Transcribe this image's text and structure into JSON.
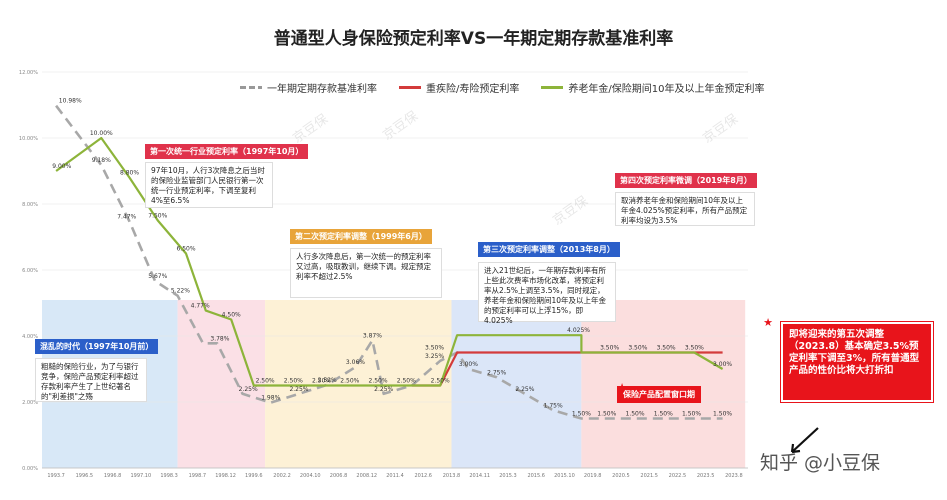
{
  "chart_data": {
    "type": "line",
    "title": "普通型人身保险预定利率VS一年期定期存款基准利率",
    "x": [
      "1993.7",
      "1996.5",
      "1996.8",
      "1997.10",
      "1998.3",
      "1998.7",
      "1998.12",
      "1999.6",
      "2002.2",
      "2004.10",
      "2006.8",
      "2008.12",
      "2011.4",
      "2012.6",
      "2013.8",
      "2014.11",
      "2015.3",
      "2015.6",
      "2015.10",
      "2019.8",
      "2020.5",
      "2021.5",
      "2022.5",
      "2023.5",
      "2023.8"
    ],
    "ylim": [
      0,
      12
    ],
    "yticks": [
      "0.00%",
      "2.00%",
      "4.00%",
      "6.00%",
      "8.00%",
      "10.00%",
      "12.00%"
    ],
    "series": [
      {
        "name": "一年期定期存款基准利率",
        "color": "#a8a8a8",
        "style": "dash",
        "points": [
          [
            0,
            10.98
          ],
          [
            1.6,
            9.18
          ],
          [
            2.6,
            7.47
          ],
          [
            3.5,
            5.67
          ],
          [
            4.3,
            5.22
          ],
          [
            5.2,
            3.78
          ],
          [
            5.7,
            3.78
          ],
          [
            6.6,
            2.25
          ],
          [
            7.6,
            1.98
          ],
          [
            8.6,
            2.25
          ],
          [
            9.6,
            2.52
          ],
          [
            10.6,
            3.06
          ],
          [
            11.2,
            3.87
          ],
          [
            11.6,
            2.25
          ],
          [
            12.6,
            2.5
          ],
          [
            13.6,
            3.25
          ],
          [
            14.2,
            3.5
          ],
          [
            14.6,
            3.0
          ],
          [
            15.6,
            2.75
          ],
          [
            16.6,
            2.25
          ],
          [
            17.6,
            1.75
          ],
          [
            18.6,
            1.5
          ],
          [
            19.6,
            1.5
          ],
          [
            21.6,
            1.5
          ],
          [
            22.6,
            1.5
          ],
          [
            23.6,
            1.5
          ]
        ]
      },
      {
        "name": "重疾险/寿险预定利率",
        "color": "#d33b3b",
        "style": "solid",
        "points": [
          [
            12.6,
            2.5
          ],
          [
            13.6,
            2.5
          ],
          [
            14.2,
            3.5
          ],
          [
            18.6,
            3.5
          ],
          [
            19.6,
            3.5
          ],
          [
            21.6,
            3.5
          ],
          [
            22.6,
            3.5
          ],
          [
            23.6,
            3.5
          ]
        ]
      },
      {
        "name": "养老年金/保险期间10年及以上年金预定利率",
        "color": "#8db43a",
        "style": "solid",
        "points": [
          [
            0,
            9.0
          ],
          [
            1.6,
            10.0
          ],
          [
            2.6,
            8.8
          ],
          [
            3.6,
            7.5
          ],
          [
            4.6,
            6.5
          ],
          [
            5.3,
            4.77
          ],
          [
            6.2,
            4.5
          ],
          [
            7.0,
            2.5
          ],
          [
            8.0,
            2.5
          ],
          [
            9.0,
            2.5
          ],
          [
            10.0,
            2.5
          ],
          [
            11.0,
            2.5
          ],
          [
            12.0,
            2.5
          ],
          [
            13.0,
            2.5
          ],
          [
            13.6,
            2.5
          ],
          [
            14.2,
            4.025
          ],
          [
            18.6,
            4.025
          ],
          [
            18.6,
            3.5
          ],
          [
            22.6,
            3.5
          ],
          [
            23.6,
            3.0
          ]
        ]
      }
    ],
    "data_labels": [
      {
        "t": "10.98%",
        "x": 0.5,
        "y": 10.98
      },
      {
        "t": "9.00%",
        "x": 0.2,
        "y": 9.0
      },
      {
        "t": "10.00%",
        "x": 1.6,
        "y": 10.0
      },
      {
        "t": "9.18%",
        "x": 1.6,
        "y": 9.18
      },
      {
        "t": "8.80%",
        "x": 2.6,
        "y": 8.8
      },
      {
        "t": "7.47%",
        "x": 2.5,
        "y": 7.47
      },
      {
        "t": "7.50%",
        "x": 3.6,
        "y": 7.5
      },
      {
        "t": "6.50%",
        "x": 4.6,
        "y": 6.5
      },
      {
        "t": "5.67%",
        "x": 3.6,
        "y": 5.67
      },
      {
        "t": "5.22%",
        "x": 4.4,
        "y": 5.22
      },
      {
        "t": "4.77%",
        "x": 5.1,
        "y": 4.77
      },
      {
        "t": "4.50%",
        "x": 6.2,
        "y": 4.5
      },
      {
        "t": "3.78%",
        "x": 5.8,
        "y": 3.78
      },
      {
        "t": "2.25%",
        "x": 6.8,
        "y": 2.25
      },
      {
        "t": "1.98%",
        "x": 7.6,
        "y": 1.98
      },
      {
        "t": "2.25%",
        "x": 8.6,
        "y": 2.25
      },
      {
        "t": "2.52%",
        "x": 9.6,
        "y": 2.52
      },
      {
        "t": "3.06%",
        "x": 10.6,
        "y": 3.06
      },
      {
        "t": "3.87%",
        "x": 11.2,
        "y": 3.87
      },
      {
        "t": "2.25%",
        "x": 11.6,
        "y": 2.25
      },
      {
        "t": "3.25%",
        "x": 13.4,
        "y": 3.25
      },
      {
        "t": "3.00%",
        "x": 14.6,
        "y": 3.0
      },
      {
        "t": "2.75%",
        "x": 15.6,
        "y": 2.75
      },
      {
        "t": "2.25%",
        "x": 16.6,
        "y": 2.25
      },
      {
        "t": "1.75%",
        "x": 17.6,
        "y": 1.75
      },
      {
        "t": "1.50%",
        "x": 18.6,
        "y": 1.5
      },
      {
        "t": "1.50%",
        "x": 19.5,
        "y": 1.5
      },
      {
        "t": "1.50%",
        "x": 20.5,
        "y": 1.5
      },
      {
        "t": "1.50%",
        "x": 21.5,
        "y": 1.5
      },
      {
        "t": "1.50%",
        "x": 22.5,
        "y": 1.5
      },
      {
        "t": "1.50%",
        "x": 23.6,
        "y": 1.5
      },
      {
        "t": "2.50%",
        "x": 13.6,
        "y": 2.5
      },
      {
        "t": "4.025%",
        "x": 18.5,
        "y": 4.025
      },
      {
        "t": "3.50%",
        "x": 19.6,
        "y": 3.5
      },
      {
        "t": "3.50%",
        "x": 20.6,
        "y": 3.5
      },
      {
        "t": "3.50%",
        "x": 21.6,
        "y": 3.5
      },
      {
        "t": "3.50%",
        "x": 22.6,
        "y": 3.5
      },
      {
        "t": "3.00%",
        "x": 23.6,
        "y": 3.0
      },
      {
        "t": "2.50%",
        "x": 7.4,
        "y": 2.5
      },
      {
        "t": "2.50%",
        "x": 8.4,
        "y": 2.5
      },
      {
        "t": "2.50%",
        "x": 9.4,
        "y": 2.5
      },
      {
        "t": "2.50%",
        "x": 10.4,
        "y": 2.5
      },
      {
        "t": "2.50%",
        "x": 11.4,
        "y": 2.5
      },
      {
        "t": "2.50%",
        "x": 12.4,
        "y": 2.5
      },
      {
        "t": "3.50%",
        "x": 13.4,
        "y": 3.5
      }
    ],
    "regions": [
      {
        "from": -0.5,
        "to": 4.3,
        "color": "#d8e8f7"
      },
      {
        "from": 4.3,
        "to": 7.4,
        "color": "#fbe0e6"
      },
      {
        "from": 7.4,
        "to": 14.0,
        "color": "#fdf1d6"
      },
      {
        "from": 14.0,
        "to": 18.6,
        "color": "#dbe6f8"
      },
      {
        "from": 18.6,
        "to": 24.4,
        "color": "#fbdede"
      }
    ]
  },
  "legend": {
    "item1": "一年期定期存款基准利率",
    "item2": "重疾险/寿险预定利率",
    "item3": "养老年金/保险期间10年及以上年金预定利率"
  },
  "annotations": {
    "tag1": "第一次统一行业预定利率（1997年10月）",
    "text1": "97年10月，人行3次降息之后当时的保险业监管部门人民银行第一次统一行业预定利率，下调至复利4%至6.5%",
    "tag2": "第二次预定利率调整（1999年6月）",
    "text2": "人行多次降息后，第一次统一的预定利率又过高，吸取教训，继续下调。规定预定利率不超过2.5%",
    "tag3": "第三次预定利率调整（2013年8月）",
    "text3": "进入21世纪后，一年期存款利率有所上些此次费率市场化改革，将预定利率从2.5%上调至3.5%，同时规定，养老年金和保险期间10年及以上年金的预定利率可以上浮15%，即4.025%",
    "tag4": "第四次预定利率微调（2019年8月）",
    "text4": "取消养老年金和保险期间10年及以上年金4.025%预定利率，所有产品预定利率均设为3.5%",
    "tag5": "混乱的时代（1997年10月前）",
    "text5": "粗糙的保险行业，为了与银行竞争，保险产品预定利率超过存款利率产生了上世纪著名的\"利差损\"之殇",
    "window": "保险产品配置窗口期",
    "callout": "即将迎来的第五次调整（2023.8）基本确定3.5%预定利率下调至3%，所有普通型产品的性价比将大打折扣",
    "zhihu": "知乎 @小豆保",
    "watermark": "京豆保"
  },
  "colors": {
    "tag_red": "#e0324b",
    "tag_gold": "#e8a43a",
    "tag_blue": "#2b5fc9",
    "callout_red": "#e8141b"
  }
}
